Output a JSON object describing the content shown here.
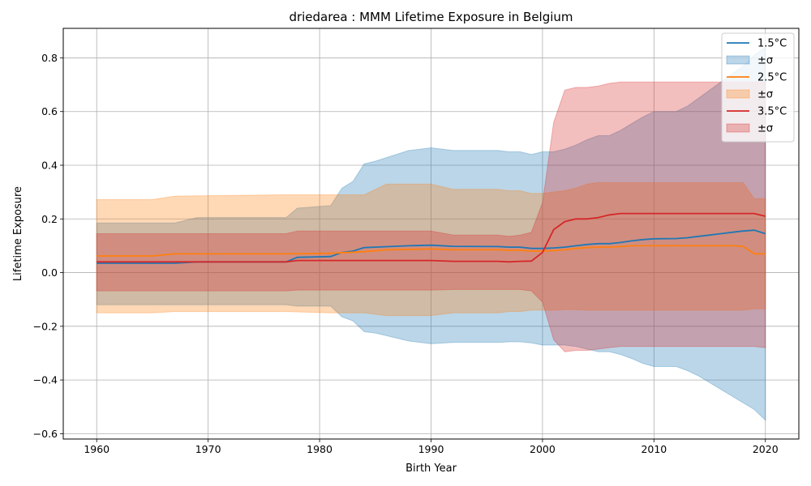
{
  "chart_data": {
    "type": "line",
    "title": "driedarea : MMM Lifetime Exposure in Belgium",
    "xlabel": "Birth Year",
    "ylabel": "Lifetime Exposure",
    "xlim": [
      1957,
      2023
    ],
    "ylim": [
      -0.62,
      0.91
    ],
    "xticks": [
      1960,
      1970,
      1980,
      1990,
      2000,
      2010,
      2020
    ],
    "yticks": [
      -0.6,
      -0.4,
      -0.2,
      0.0,
      0.2,
      0.4,
      0.6,
      0.8
    ],
    "ytick_labels": [
      "−0.6",
      "−0.4",
      "−0.2",
      "0.0",
      "0.2",
      "0.4",
      "0.6",
      "0.8"
    ],
    "grid": true,
    "legend_position": "top-right",
    "series": [
      {
        "name": "1.5°C",
        "band_label": "±σ",
        "color": "#1f77b4",
        "band_color": "#1f77b4",
        "x": [
          1960,
          1967,
          1969,
          1977,
          1978,
          1981,
          1982,
          1983,
          1984,
          1985,
          1988,
          1990,
          1992,
          1996,
          1997,
          1998,
          1999,
          2000,
          2001,
          2002,
          2003,
          2004,
          2005,
          2006,
          2007,
          2008,
          2009,
          2010,
          2012,
          2013,
          2014,
          2015,
          2016,
          2017,
          2018,
          2019,
          2020
        ],
        "mean": [
          0.035,
          0.035,
          0.04,
          0.04,
          0.057,
          0.06,
          0.075,
          0.08,
          0.093,
          0.095,
          0.1,
          0.102,
          0.098,
          0.097,
          0.095,
          0.095,
          0.09,
          0.09,
          0.092,
          0.095,
          0.1,
          0.105,
          0.108,
          0.108,
          0.112,
          0.118,
          0.123,
          0.126,
          0.127,
          0.13,
          0.135,
          0.14,
          0.145,
          0.15,
          0.155,
          0.158,
          0.145
        ],
        "upper": [
          0.185,
          0.185,
          0.205,
          0.205,
          0.24,
          0.25,
          0.315,
          0.34,
          0.405,
          0.415,
          0.455,
          0.465,
          0.455,
          0.455,
          0.45,
          0.45,
          0.44,
          0.45,
          0.45,
          0.46,
          0.475,
          0.495,
          0.51,
          0.51,
          0.53,
          0.555,
          0.58,
          0.6,
          0.6,
          0.62,
          0.65,
          0.68,
          0.71,
          0.74,
          0.77,
          0.81,
          0.84
        ],
        "lower": [
          -0.12,
          -0.12,
          -0.12,
          -0.12,
          -0.125,
          -0.125,
          -0.165,
          -0.18,
          -0.22,
          -0.225,
          -0.255,
          -0.265,
          -0.26,
          -0.26,
          -0.258,
          -0.258,
          -0.262,
          -0.27,
          -0.27,
          -0.27,
          -0.275,
          -0.285,
          -0.295,
          -0.295,
          -0.305,
          -0.32,
          -0.338,
          -0.35,
          -0.35,
          -0.365,
          -0.385,
          -0.41,
          -0.435,
          -0.46,
          -0.485,
          -0.51,
          -0.55
        ]
      },
      {
        "name": "2.5°C",
        "band_label": "±σ",
        "color": "#ff7f0e",
        "band_color": "#ff7f0e",
        "x": [
          1960,
          1965,
          1967,
          1977,
          1981,
          1984,
          1986,
          1990,
          1992,
          1996,
          1997,
          1998,
          1999,
          2000,
          2001,
          2002,
          2003,
          2004,
          2005,
          2006,
          2007,
          2008,
          2017,
          2018,
          2019,
          2020
        ],
        "mean": [
          0.062,
          0.062,
          0.07,
          0.07,
          0.072,
          0.078,
          0.085,
          0.088,
          0.085,
          0.085,
          0.083,
          0.083,
          0.08,
          0.08,
          0.082,
          0.085,
          0.09,
          0.093,
          0.095,
          0.095,
          0.097,
          0.1,
          0.1,
          0.098,
          0.07,
          0.07
        ],
        "upper": [
          0.272,
          0.272,
          0.285,
          0.29,
          0.29,
          0.29,
          0.33,
          0.33,
          0.31,
          0.31,
          0.305,
          0.305,
          0.295,
          0.295,
          0.3,
          0.305,
          0.315,
          0.33,
          0.335,
          0.335,
          0.335,
          0.335,
          0.335,
          0.335,
          0.275,
          0.275
        ],
        "lower": [
          -0.15,
          -0.15,
          -0.145,
          -0.145,
          -0.15,
          -0.15,
          -0.16,
          -0.16,
          -0.15,
          -0.15,
          -0.145,
          -0.145,
          -0.14,
          -0.14,
          -0.14,
          -0.138,
          -0.138,
          -0.14,
          -0.14,
          -0.14,
          -0.14,
          -0.14,
          -0.14,
          -0.14,
          -0.135,
          -0.135
        ]
      },
      {
        "name": "3.5°C",
        "band_label": "±σ",
        "color": "#d62728",
        "band_color": "#d62728",
        "x": [
          1960,
          1977,
          1978,
          1990,
          1992,
          1996,
          1997,
          1998,
          1999,
          2000,
          2001,
          2002,
          2003,
          2004,
          2005,
          2006,
          2007,
          2017,
          2018,
          2019,
          2020
        ],
        "mean": [
          0.04,
          0.04,
          0.045,
          0.045,
          0.042,
          0.042,
          0.04,
          0.042,
          0.043,
          0.075,
          0.16,
          0.19,
          0.2,
          0.2,
          0.205,
          0.215,
          0.22,
          0.22,
          0.22,
          0.22,
          0.21
        ],
        "upper": [
          0.145,
          0.145,
          0.155,
          0.155,
          0.14,
          0.14,
          0.135,
          0.14,
          0.15,
          0.26,
          0.56,
          0.68,
          0.69,
          0.69,
          0.695,
          0.705,
          0.71,
          0.71,
          0.71,
          0.71,
          0.71
        ],
        "lower": [
          -0.068,
          -0.068,
          -0.065,
          -0.065,
          -0.063,
          -0.063,
          -0.063,
          -0.063,
          -0.068,
          -0.11,
          -0.25,
          -0.295,
          -0.29,
          -0.29,
          -0.285,
          -0.28,
          -0.275,
          -0.275,
          -0.275,
          -0.275,
          -0.28
        ]
      }
    ]
  }
}
